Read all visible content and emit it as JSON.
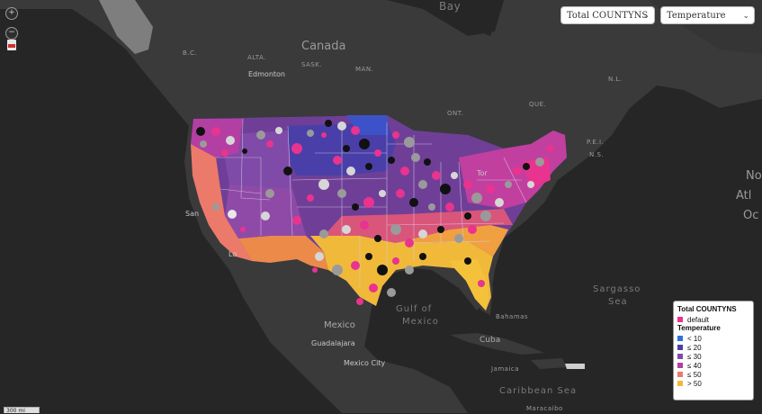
{
  "controls": {
    "zoom_in": "+",
    "zoom_out": "−",
    "metric_select": "Total COUNTYNS",
    "overlay_select": "Temperature"
  },
  "legend": {
    "size_title": "Total COUNTYNS",
    "size_items": [
      {
        "label": "default",
        "color": "#e8338f"
      }
    ],
    "color_title": "Temperature",
    "color_items": [
      {
        "label": "< 10",
        "color": "#2f6fe0"
      },
      {
        "label": "≤ 20",
        "color": "#4a3fa8"
      },
      {
        "label": "≤ 30",
        "color": "#7f4aa8"
      },
      {
        "label": "≤ 40",
        "color": "#b33fa3"
      },
      {
        "label": "≤ 50",
        "color": "#ec7a6a"
      },
      {
        "label": "> 50",
        "color": "#f0b93a"
      }
    ]
  },
  "map_labels": {
    "bay": "Bay",
    "canada": "Canada",
    "bc": "B.C.",
    "alta": "ALTA.",
    "sask": "SASK.",
    "man": "MAN.",
    "ont": "ONT.",
    "que": "QUE.",
    "nl": "N.L.",
    "pei": "P.E.I.",
    "ns": "N.S.",
    "edmonton": "Edmonton",
    "toronto": "Tor",
    "san_fran": "San",
    "los_angeles": "Lo",
    "atlantic_1": "No",
    "atlantic_2": "Atl",
    "atlantic_3": "Oc",
    "sargasso_1": "Sargasso",
    "sargasso_2": "Sea",
    "gulf_1": "Gulf of",
    "gulf_2": "Mexico",
    "mexico": "Mexico",
    "guadalajara": "Guadalajara",
    "mexico_city": "Mexico City",
    "bahamas": "Bahamas",
    "cuba": "Cuba",
    "jamaica": "Jamaica",
    "caribbean": "Caribbean Sea",
    "maracaibo": "Maracaibo",
    "scale": "300 mi"
  },
  "colors": {
    "background": "#262626",
    "land": "#3a3a3a",
    "pink": "#e8338f"
  }
}
